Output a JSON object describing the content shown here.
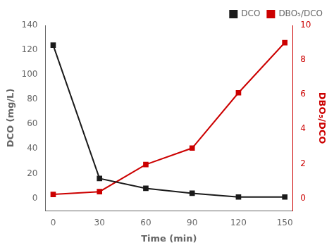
{
  "chart_data": {
    "type": "line",
    "x": [
      0,
      30,
      60,
      90,
      120,
      150
    ],
    "series": [
      {
        "name": "DCO",
        "color": "#1a1a1a",
        "values": [
          124,
          16,
          8,
          4,
          1,
          1
        ]
      },
      {
        "name": "DBO₅/DCO",
        "color": "#cc0000",
        "values": [
          0.22,
          0.38,
          1.95,
          2.9,
          6.1,
          9.0
        ],
        "axis": "y2"
      }
    ],
    "xlabel": "Time (min)",
    "ylabel": "DCO (mg/L)",
    "y2label": "DBO₅/DCO",
    "xlim": [
      -5,
      155
    ],
    "xticks": [
      0,
      30,
      60,
      90,
      120,
      150
    ],
    "ylim": [
      -10,
      140
    ],
    "yticks": [
      0,
      20,
      40,
      60,
      80,
      100,
      120,
      140
    ],
    "y2lim": [
      -0.714,
      10
    ],
    "y2ticks": [
      0,
      2,
      4,
      6,
      8,
      10
    ],
    "marker": "square",
    "grid": false,
    "legend": "upper right"
  }
}
